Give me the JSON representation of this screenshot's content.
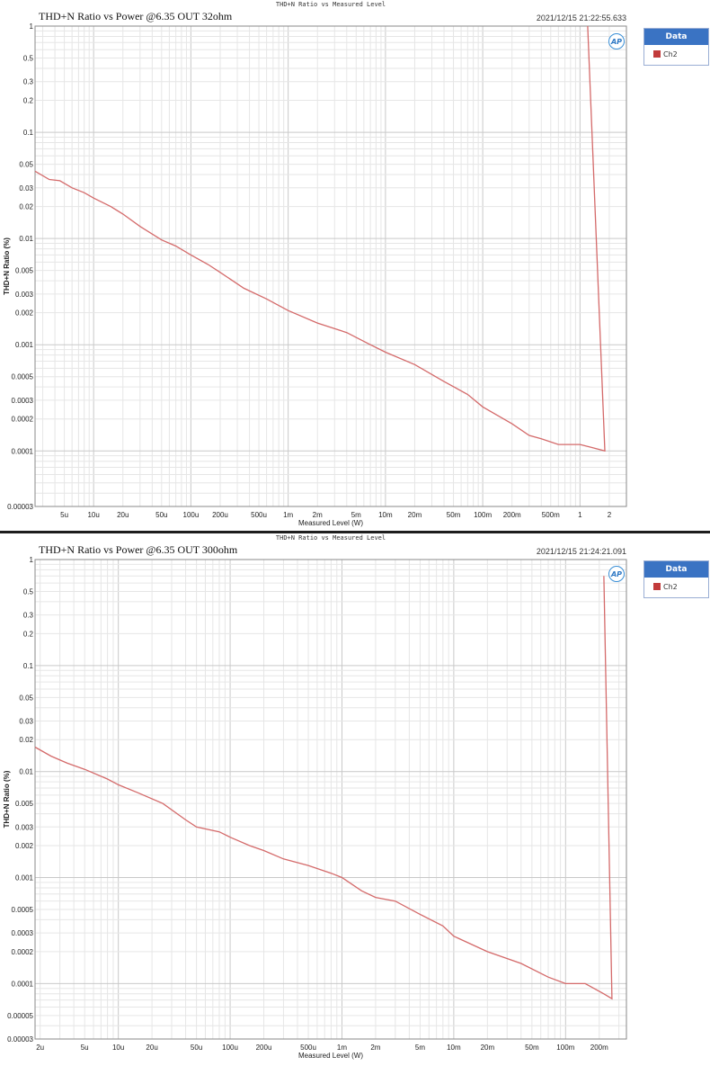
{
  "colors": {
    "series": "#d46a6a",
    "legend_header": "#3a73c3",
    "grid_major": "#c9c9c9",
    "grid_minor": "#e6e6e6"
  },
  "legend_icon": "ap-logo-icon",
  "chart_data": [
    {
      "type": "line",
      "top_title": "THD+N Ratio vs Measured Level",
      "title": "THD+N Ratio vs Power @6.35 OUT 32ohm",
      "timestamp": "2021/12/15 21:22:55.633",
      "ap_logo": "AP",
      "xlabel": "Measured Level (W)",
      "ylabel": "THD+N Ratio (%)",
      "x_scale": "log",
      "y_scale": "log",
      "xlim": [
        2.5e-06,
        3
      ],
      "ylim": [
        3e-05,
        1
      ],
      "grid": true,
      "legend_position": "right",
      "x_ticks": [
        {
          "v": 5e-06,
          "label": "5u"
        },
        {
          "v": 1e-05,
          "label": "10u"
        },
        {
          "v": 2e-05,
          "label": "20u"
        },
        {
          "v": 5e-05,
          "label": "50u"
        },
        {
          "v": 0.0001,
          "label": "100u"
        },
        {
          "v": 0.0002,
          "label": "200u"
        },
        {
          "v": 0.0005,
          "label": "500u"
        },
        {
          "v": 0.001,
          "label": "1m"
        },
        {
          "v": 0.002,
          "label": "2m"
        },
        {
          "v": 0.005,
          "label": "5m"
        },
        {
          "v": 0.01,
          "label": "10m"
        },
        {
          "v": 0.02,
          "label": "20m"
        },
        {
          "v": 0.05,
          "label": "50m"
        },
        {
          "v": 0.1,
          "label": "100m"
        },
        {
          "v": 0.2,
          "label": "200m"
        },
        {
          "v": 0.5,
          "label": "500m"
        },
        {
          "v": 1,
          "label": "1"
        },
        {
          "v": 2,
          "label": "2"
        }
      ],
      "y_ticks": [
        {
          "v": 1,
          "label": "1"
        },
        {
          "v": 0.5,
          "label": "0.5"
        },
        {
          "v": 0.3,
          "label": "0.3"
        },
        {
          "v": 0.2,
          "label": "0.2"
        },
        {
          "v": 0.1,
          "label": "0.1"
        },
        {
          "v": 0.05,
          "label": "0.05"
        },
        {
          "v": 0.03,
          "label": "0.03"
        },
        {
          "v": 0.02,
          "label": "0.02"
        },
        {
          "v": 0.01,
          "label": "0.01"
        },
        {
          "v": 0.005,
          "label": "0.005"
        },
        {
          "v": 0.003,
          "label": "0.003"
        },
        {
          "v": 0.002,
          "label": "0.002"
        },
        {
          "v": 0.001,
          "label": "0.001"
        },
        {
          "v": 0.0005,
          "label": "0.0005"
        },
        {
          "v": 0.0003,
          "label": "0.0003"
        },
        {
          "v": 0.0002,
          "label": "0.0002"
        },
        {
          "v": 0.0001,
          "label": "0.0001"
        },
        {
          "v": 3e-05,
          "label": "0.00003"
        }
      ],
      "series": [
        {
          "name": "Ch2",
          "x": [
            2.5e-06,
            3.5e-06,
            4.5e-06,
            6e-06,
            8e-06,
            1e-05,
            1.5e-05,
            2e-05,
            3e-05,
            5e-05,
            7e-05,
            0.0001,
            0.00015,
            0.0002,
            0.00035,
            0.0006,
            0.001,
            0.002,
            0.004,
            0.007,
            0.01,
            0.02,
            0.04,
            0.07,
            0.1,
            0.2,
            0.3,
            0.4,
            0.6,
            1.0,
            1.3,
            1.8,
            1.2
          ],
          "y": [
            0.043,
            0.036,
            0.035,
            0.03,
            0.027,
            0.024,
            0.02,
            0.017,
            0.013,
            0.0097,
            0.0085,
            0.007,
            0.0057,
            0.0048,
            0.0034,
            0.0027,
            0.0021,
            0.0016,
            0.0013,
            0.001,
            0.00085,
            0.00065,
            0.00045,
            0.00034,
            0.00026,
            0.00018,
            0.00014,
            0.00013,
            0.000115,
            0.000115,
            0.000108,
            0.0001,
            1
          ]
        }
      ]
    },
    {
      "type": "line",
      "top_title": "THD+N Ratio vs Measured Level",
      "title": "THD+N Ratio vs Power @6.35 OUT 300ohm",
      "timestamp": "2021/12/15 21:24:21.091",
      "ap_logo": "AP",
      "xlabel": "Measured Level (W)",
      "ylabel": "THD+N Ratio (%)",
      "x_scale": "log",
      "y_scale": "log",
      "xlim": [
        1.8e-06,
        0.35
      ],
      "ylim": [
        3e-05,
        1
      ],
      "grid": true,
      "legend_position": "right",
      "x_ticks": [
        {
          "v": 2e-06,
          "label": "2u"
        },
        {
          "v": 5e-06,
          "label": "5u"
        },
        {
          "v": 1e-05,
          "label": "10u"
        },
        {
          "v": 2e-05,
          "label": "20u"
        },
        {
          "v": 5e-05,
          "label": "50u"
        },
        {
          "v": 0.0001,
          "label": "100u"
        },
        {
          "v": 0.0002,
          "label": "200u"
        },
        {
          "v": 0.0005,
          "label": "500u"
        },
        {
          "v": 0.001,
          "label": "1m"
        },
        {
          "v": 0.002,
          "label": "2m"
        },
        {
          "v": 0.005,
          "label": "5m"
        },
        {
          "v": 0.01,
          "label": "10m"
        },
        {
          "v": 0.02,
          "label": "20m"
        },
        {
          "v": 0.05,
          "label": "50m"
        },
        {
          "v": 0.1,
          "label": "100m"
        },
        {
          "v": 0.2,
          "label": "200m"
        }
      ],
      "y_ticks": [
        {
          "v": 1,
          "label": "1"
        },
        {
          "v": 0.5,
          "label": "0.5"
        },
        {
          "v": 0.3,
          "label": "0.3"
        },
        {
          "v": 0.2,
          "label": "0.2"
        },
        {
          "v": 0.1,
          "label": "0.1"
        },
        {
          "v": 0.05,
          "label": "0.05"
        },
        {
          "v": 0.03,
          "label": "0.03"
        },
        {
          "v": 0.02,
          "label": "0.02"
        },
        {
          "v": 0.01,
          "label": "0.01"
        },
        {
          "v": 0.005,
          "label": "0.005"
        },
        {
          "v": 0.003,
          "label": "0.003"
        },
        {
          "v": 0.002,
          "label": "0.002"
        },
        {
          "v": 0.001,
          "label": "0.001"
        },
        {
          "v": 0.0005,
          "label": "0.0005"
        },
        {
          "v": 0.0003,
          "label": "0.0003"
        },
        {
          "v": 0.0002,
          "label": "0.0002"
        },
        {
          "v": 0.0001,
          "label": "0.0001"
        },
        {
          "v": 5e-05,
          "label": "0.00005"
        },
        {
          "v": 3e-05,
          "label": "0.00003"
        }
      ],
      "series": [
        {
          "name": "Ch2",
          "x": [
            1.8e-06,
            2.5e-06,
            3.5e-06,
            5e-06,
            8e-06,
            1e-05,
            1.5e-05,
            2.5e-05,
            4e-05,
            5e-05,
            8e-05,
            0.0001,
            0.00015,
            0.0002,
            0.0003,
            0.0005,
            0.0008,
            0.001,
            0.0015,
            0.002,
            0.003,
            0.005,
            0.008,
            0.01,
            0.02,
            0.04,
            0.07,
            0.1,
            0.15,
            0.22,
            0.26,
            0.22
          ],
          "y": [
            0.017,
            0.014,
            0.012,
            0.0105,
            0.0085,
            0.0075,
            0.0063,
            0.005,
            0.0035,
            0.003,
            0.0027,
            0.0024,
            0.002,
            0.0018,
            0.0015,
            0.0013,
            0.0011,
            0.001,
            0.00075,
            0.00065,
            0.0006,
            0.00045,
            0.00035,
            0.00028,
            0.0002,
            0.000155,
            0.000115,
            0.0001,
            0.0001,
            8e-05,
            7.2e-05,
            0.7
          ]
        }
      ]
    }
  ]
}
